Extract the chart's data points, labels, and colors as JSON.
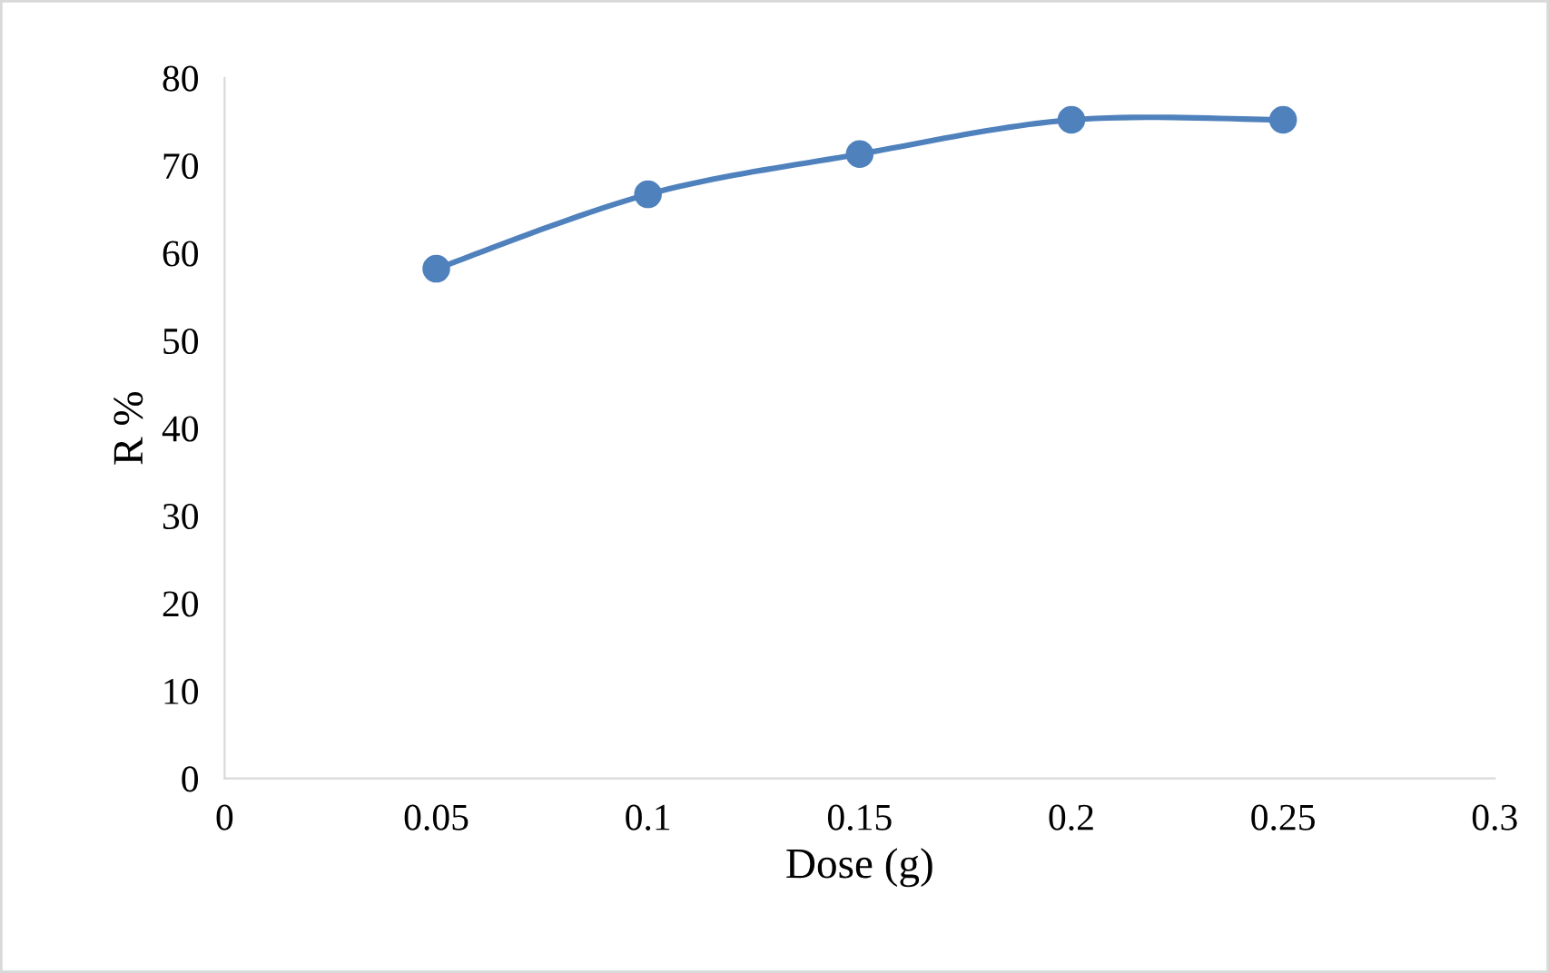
{
  "chart_data": {
    "type": "line",
    "xlabel": "Dose (g)",
    "ylabel": "R %",
    "x": [
      0.05,
      0.1,
      0.15,
      0.2,
      0.25
    ],
    "series": [
      {
        "color": "#4f81bd",
        "values": [
          58.2,
          66.7,
          71.3,
          75.2,
          75.2
        ]
      }
    ],
    "xlim": [
      0,
      0.3
    ],
    "xticks": [
      0,
      0.05,
      0.1,
      0.15,
      0.2,
      0.25,
      0.3
    ],
    "ylim": [
      0,
      80
    ],
    "yticks": [
      0,
      10,
      20,
      30,
      40,
      50,
      60,
      70,
      80
    ],
    "marker": "circle",
    "line_style": "solid",
    "grid": false,
    "legend": false
  }
}
